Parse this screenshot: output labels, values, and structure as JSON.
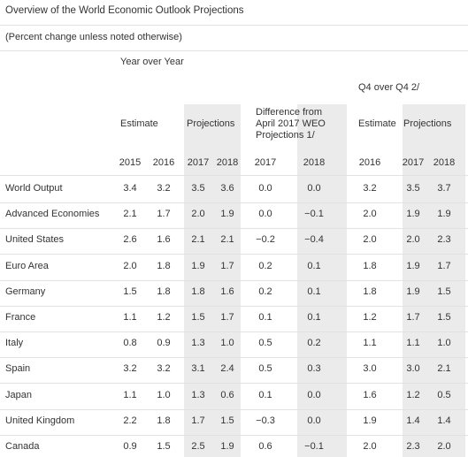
{
  "title": "Overview of the World Economic Outlook Projections",
  "subtitle": "(Percent change unless noted otherwise)",
  "group_yoy": "Year over Year",
  "group_q4": "Q4 over Q4 2/",
  "sub_estimate": "Estimate",
  "sub_projections": "Projections",
  "sub_difference": "Difference from April 2017 WEO Projections 1/",
  "sub_q4_estimate": "Estimate",
  "sub_q4_projections": "Projections",
  "years": [
    "2015",
    "2016",
    "2017",
    "2018",
    "2017",
    "2018",
    "2016",
    "2017",
    "2018"
  ],
  "rows": [
    {
      "label": "World Output",
      "values": [
        "3.4",
        "3.2",
        "3.5",
        "3.6",
        "0.0",
        "0.0",
        "3.2",
        "3.5",
        "3.7"
      ]
    },
    {
      "label": "Advanced Economies",
      "values": [
        "2.1",
        "1.7",
        "2.0",
        "1.9",
        "0.0",
        "−0.1",
        "2.0",
        "1.9",
        "1.9"
      ]
    },
    {
      "label": "United States",
      "values": [
        "2.6",
        "1.6",
        "2.1",
        "2.1",
        "−0.2",
        "−0.4",
        "2.0",
        "2.0",
        "2.3"
      ]
    },
    {
      "label": "Euro Area",
      "values": [
        "2.0",
        "1.8",
        "1.9",
        "1.7",
        "0.2",
        "0.1",
        "1.8",
        "1.9",
        "1.7"
      ]
    },
    {
      "label": "Germany",
      "values": [
        "1.5",
        "1.8",
        "1.8",
        "1.6",
        "0.2",
        "0.1",
        "1.8",
        "1.9",
        "1.5"
      ]
    },
    {
      "label": "France",
      "values": [
        "1.1",
        "1.2",
        "1.5",
        "1.7",
        "0.1",
        "0.1",
        "1.2",
        "1.7",
        "1.5"
      ]
    },
    {
      "label": "Italy",
      "values": [
        "0.8",
        "0.9",
        "1.3",
        "1.0",
        "0.5",
        "0.2",
        "1.1",
        "1.1",
        "1.0"
      ]
    },
    {
      "label": "Spain",
      "values": [
        "3.2",
        "3.2",
        "3.1",
        "2.4",
        "0.5",
        "0.3",
        "3.0",
        "3.0",
        "2.1"
      ]
    },
    {
      "label": "Japan",
      "values": [
        "1.1",
        "1.0",
        "1.3",
        "0.6",
        "0.1",
        "0.0",
        "1.6",
        "1.2",
        "0.5"
      ]
    },
    {
      "label": "United Kingdom",
      "values": [
        "2.2",
        "1.8",
        "1.7",
        "1.5",
        "−0.3",
        "0.0",
        "1.9",
        "1.4",
        "1.4"
      ]
    },
    {
      "label": "Canada",
      "values": [
        "0.9",
        "1.5",
        "2.5",
        "1.9",
        "0.6",
        "−0.1",
        "2.0",
        "2.3",
        "2.0"
      ]
    }
  ]
}
